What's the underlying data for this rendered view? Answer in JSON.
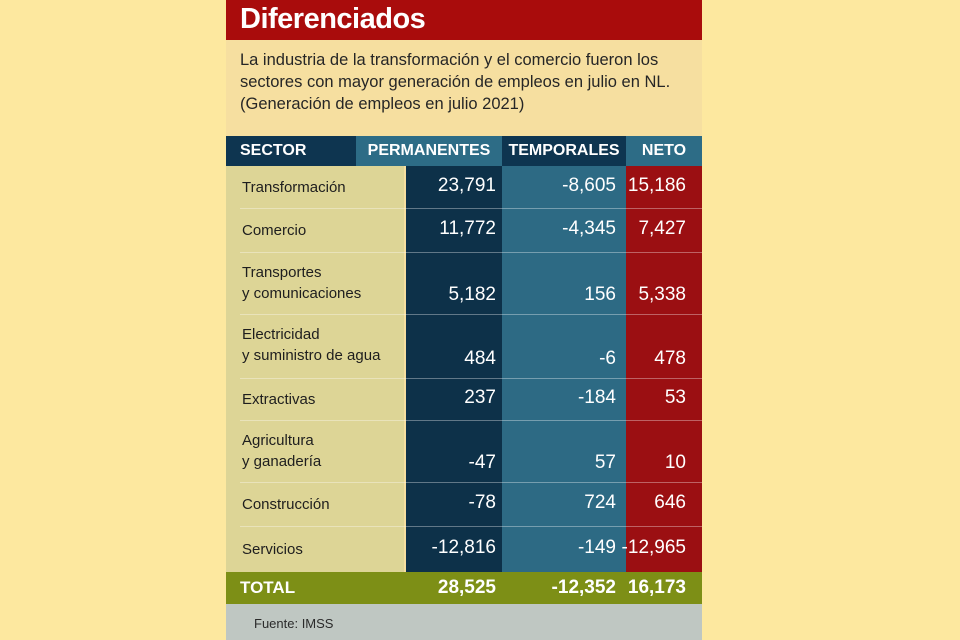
{
  "title": "Diferenciados",
  "subtitle": "La industria de la transformación y el comercio fueron los sectores con mayor generación de empleos en julio en NL.",
  "note": "(Generación de empleos en julio 2021)",
  "headers": {
    "sector": "SECTOR",
    "permanentes": "PERMANENTES",
    "temporales": "TEMPORALES",
    "neto": "NETO"
  },
  "rows": [
    {
      "sector_line1": "Transformación",
      "sector_line2": "",
      "permanentes": "23,791",
      "temporales": "-8,605",
      "neto": "15,186"
    },
    {
      "sector_line1": "Comercio",
      "sector_line2": "",
      "permanentes": "11,772",
      "temporales": "-4,345",
      "neto": "7,427"
    },
    {
      "sector_line1": "Transportes",
      "sector_line2": "y comunicaciones",
      "permanentes": "5,182",
      "temporales": "156",
      "neto": "5,338"
    },
    {
      "sector_line1": "Electricidad",
      "sector_line2": "y suministro de agua",
      "permanentes": "484",
      "temporales": "-6",
      "neto": "478"
    },
    {
      "sector_line1": "Extractivas",
      "sector_line2": "",
      "permanentes": "237",
      "temporales": "-184",
      "neto": "53"
    },
    {
      "sector_line1": "Agricultura",
      "sector_line2": "y ganadería",
      "permanentes": "-47",
      "temporales": "57",
      "neto": "10"
    },
    {
      "sector_line1": "Construcción",
      "sector_line2": "",
      "permanentes": "-78",
      "temporales": "724",
      "neto": "646"
    },
    {
      "sector_line1": "Servicios",
      "sector_line2": "",
      "permanentes": "-12,816",
      "temporales": "-149",
      "neto": "-12,965"
    }
  ],
  "total": {
    "label": "TOTAL",
    "permanentes": "28,525",
    "temporales": "-12,352",
    "neto": "16,173"
  },
  "source": "Fuente: IMSS",
  "colors": {
    "title_bar": "#a90c0c",
    "dark_blue": "#0d3149",
    "teal": "#2d6a84",
    "red": "#9b0f12",
    "olive": "#7d8f16",
    "background": "#f6dfa0"
  },
  "chart_data": {
    "type": "table",
    "title": "Diferenciados",
    "subtitle": "La industria de la transformación y el comercio fueron los sectores con mayor generación de empleos en julio en NL.",
    "note": "(Generación de empleos en julio 2021)",
    "columns": [
      "SECTOR",
      "PERMANENTES",
      "TEMPORALES",
      "NETO"
    ],
    "rows": [
      [
        "Transformación",
        23791,
        -8605,
        15186
      ],
      [
        "Comercio",
        11772,
        -4345,
        7427
      ],
      [
        "Transportes y comunicaciones",
        5182,
        156,
        5338
      ],
      [
        "Electricidad y suministro de agua",
        484,
        -6,
        478
      ],
      [
        "Extractivas",
        237,
        -184,
        53
      ],
      [
        "Agricultura y ganadería",
        -47,
        57,
        10
      ],
      [
        "Construcción",
        -78,
        724,
        646
      ],
      [
        "Servicios",
        -12816,
        -149,
        -12965
      ]
    ],
    "total": [
      "TOTAL",
      28525,
      -12352,
      16173
    ],
    "source": "Fuente: IMSS"
  }
}
